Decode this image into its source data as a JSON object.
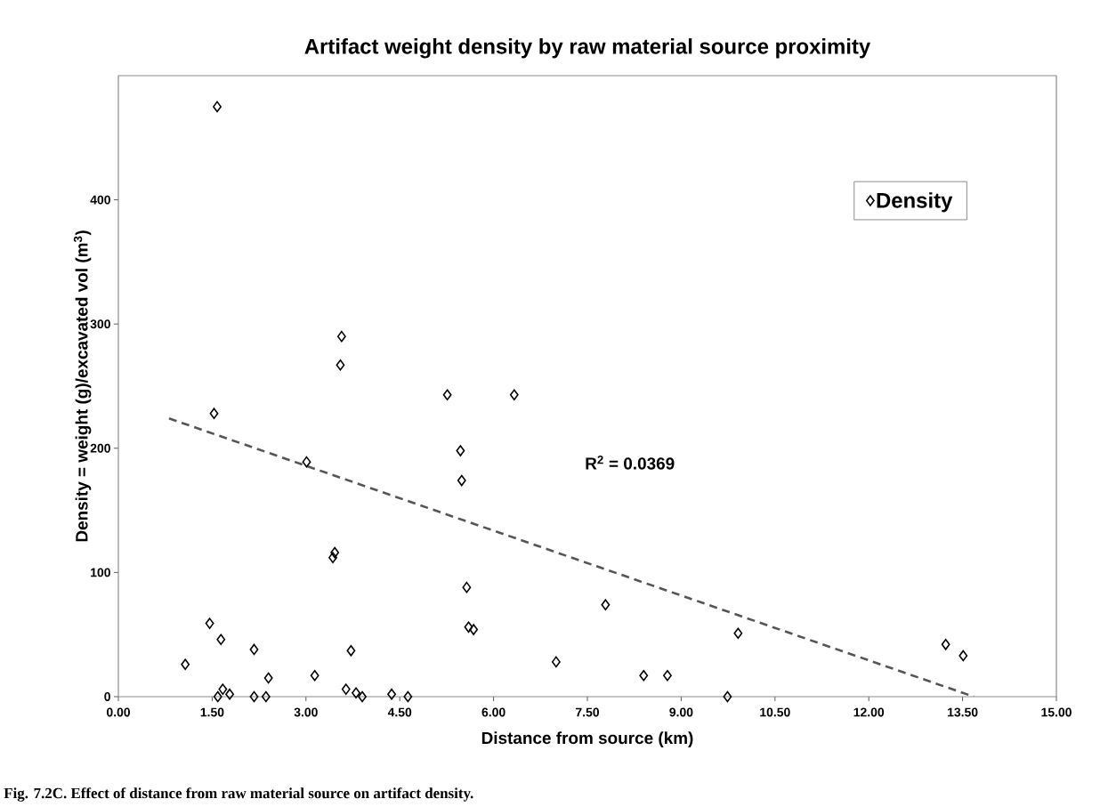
{
  "chart_data": {
    "type": "scatter",
    "title": "Artifact weight density by raw material source proximity",
    "xlabel": "Distance from source (km)",
    "ylabel": "Density = weight (g)/excavated vol (m$^{3}$)",
    "annotations": [
      "R$^{2}$ = 0.0369",
      "Fig. 7.2C. Effect of distance from raw material source on artifact density."
    ],
    "series": [
      {
        "name": "Density",
        "color": "#000000",
        "marker": "diamond",
        "x": [
          1.58,
          1.53,
          3.01,
          3.55,
          3.57,
          3.46,
          3.43,
          1.46,
          1.64,
          2.17,
          1.07,
          3.14,
          2.4,
          3.72,
          3.64,
          1.67,
          1.59,
          1.78,
          2.17,
          2.36,
          3.8,
          3.9,
          5.47,
          5.49,
          5.57,
          5.6,
          5.68,
          7.79,
          7.0,
          8.4,
          8.78,
          4.37,
          4.63,
          9.74,
          5.26,
          6.33,
          9.91,
          13.23,
          13.51
        ],
        "values": [
          475,
          228,
          189,
          267,
          290,
          116,
          112,
          59,
          46,
          38,
          26,
          17,
          15,
          37,
          6,
          6,
          0,
          2,
          0,
          0,
          3,
          0,
          198,
          174,
          88,
          56,
          54,
          74,
          28,
          17,
          17,
          2,
          0,
          0,
          243,
          243,
          51,
          42,
          33
        ]
      },
      {
        "type": "line",
        "color": "#555555",
        "line_style": "dashed",
        "marker": "none",
        "x": [
          0.81,
          13.68
        ],
        "values": [
          224,
          0
        ]
      }
    ],
    "xlim": [
      0,
      15
    ],
    "ylim": [
      0,
      500
    ],
    "xticks": [
      {
        "value": 0,
        "label": "0.00"
      },
      {
        "value": 1.5,
        "label": "1.50"
      },
      {
        "value": 3,
        "label": "3.00"
      },
      {
        "value": 4.5,
        "label": "4.50"
      },
      {
        "value": 6,
        "label": "6.00"
      },
      {
        "value": 7.5,
        "label": "7.50"
      },
      {
        "value": 9,
        "label": "9.00"
      },
      {
        "value": 10.5,
        "label": "10.50"
      },
      {
        "value": 12,
        "label": "12.00"
      },
      {
        "value": 13.5,
        "label": "13.50"
      },
      {
        "value": 15,
        "label": "15.00"
      }
    ],
    "yticks": [
      0,
      100,
      200,
      300,
      400
    ],
    "legend": "top right"
  }
}
